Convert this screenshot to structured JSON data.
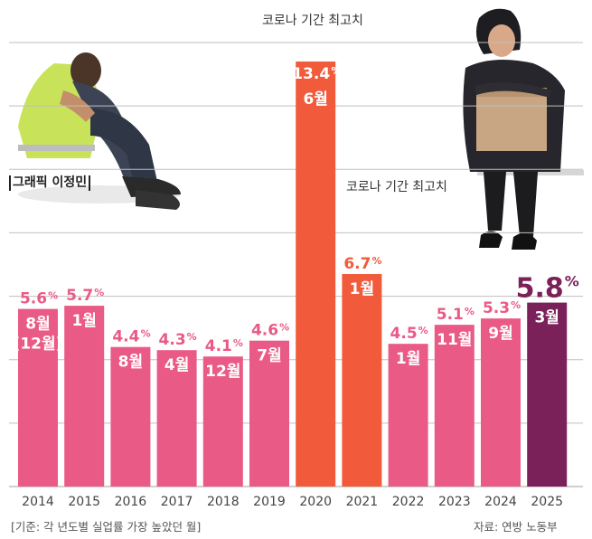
{
  "chart_data": {
    "type": "bar",
    "categories": [
      "2014",
      "2015",
      "2016",
      "2017",
      "2018",
      "2019",
      "2020",
      "2021",
      "2022",
      "2023",
      "2024",
      "2025"
    ],
    "values": [
      5.6,
      5.7,
      4.4,
      4.3,
      4.1,
      4.6,
      13.4,
      6.7,
      4.5,
      5.1,
      5.3,
      5.8
    ],
    "months": [
      "8월",
      "1월",
      "8월",
      "4월",
      "12월",
      "7월",
      "6월",
      "1월",
      "1월",
      "11월",
      "9월",
      "3월"
    ],
    "month_extra": [
      "(12월)",
      "",
      "",
      "",
      "",
      "",
      "",
      "",
      "",
      "",
      "",
      ""
    ],
    "ylim": [
      0,
      14
    ],
    "grid": true,
    "colors": {
      "default": "#ea5a86",
      "covid": "#f15b3b",
      "latest": "#7a2159",
      "grid": "#bfbfbf"
    },
    "bar_colors": [
      "default",
      "default",
      "default",
      "default",
      "default",
      "default",
      "covid",
      "covid",
      "default",
      "default",
      "default",
      "latest"
    ],
    "annotations": [
      "코로나 기간 최고치",
      "코로나 기간 최고치"
    ]
  },
  "texts": {
    "credit": "그래픽  이정민",
    "footnote": "[기준: 각 년도별 실업률 가장 높았던 월]",
    "source": "자료: 연방 노동부",
    "percent_sign": "%"
  },
  "illustrations": [
    "crouching-worker-photo",
    "woman-with-box-photo"
  ]
}
